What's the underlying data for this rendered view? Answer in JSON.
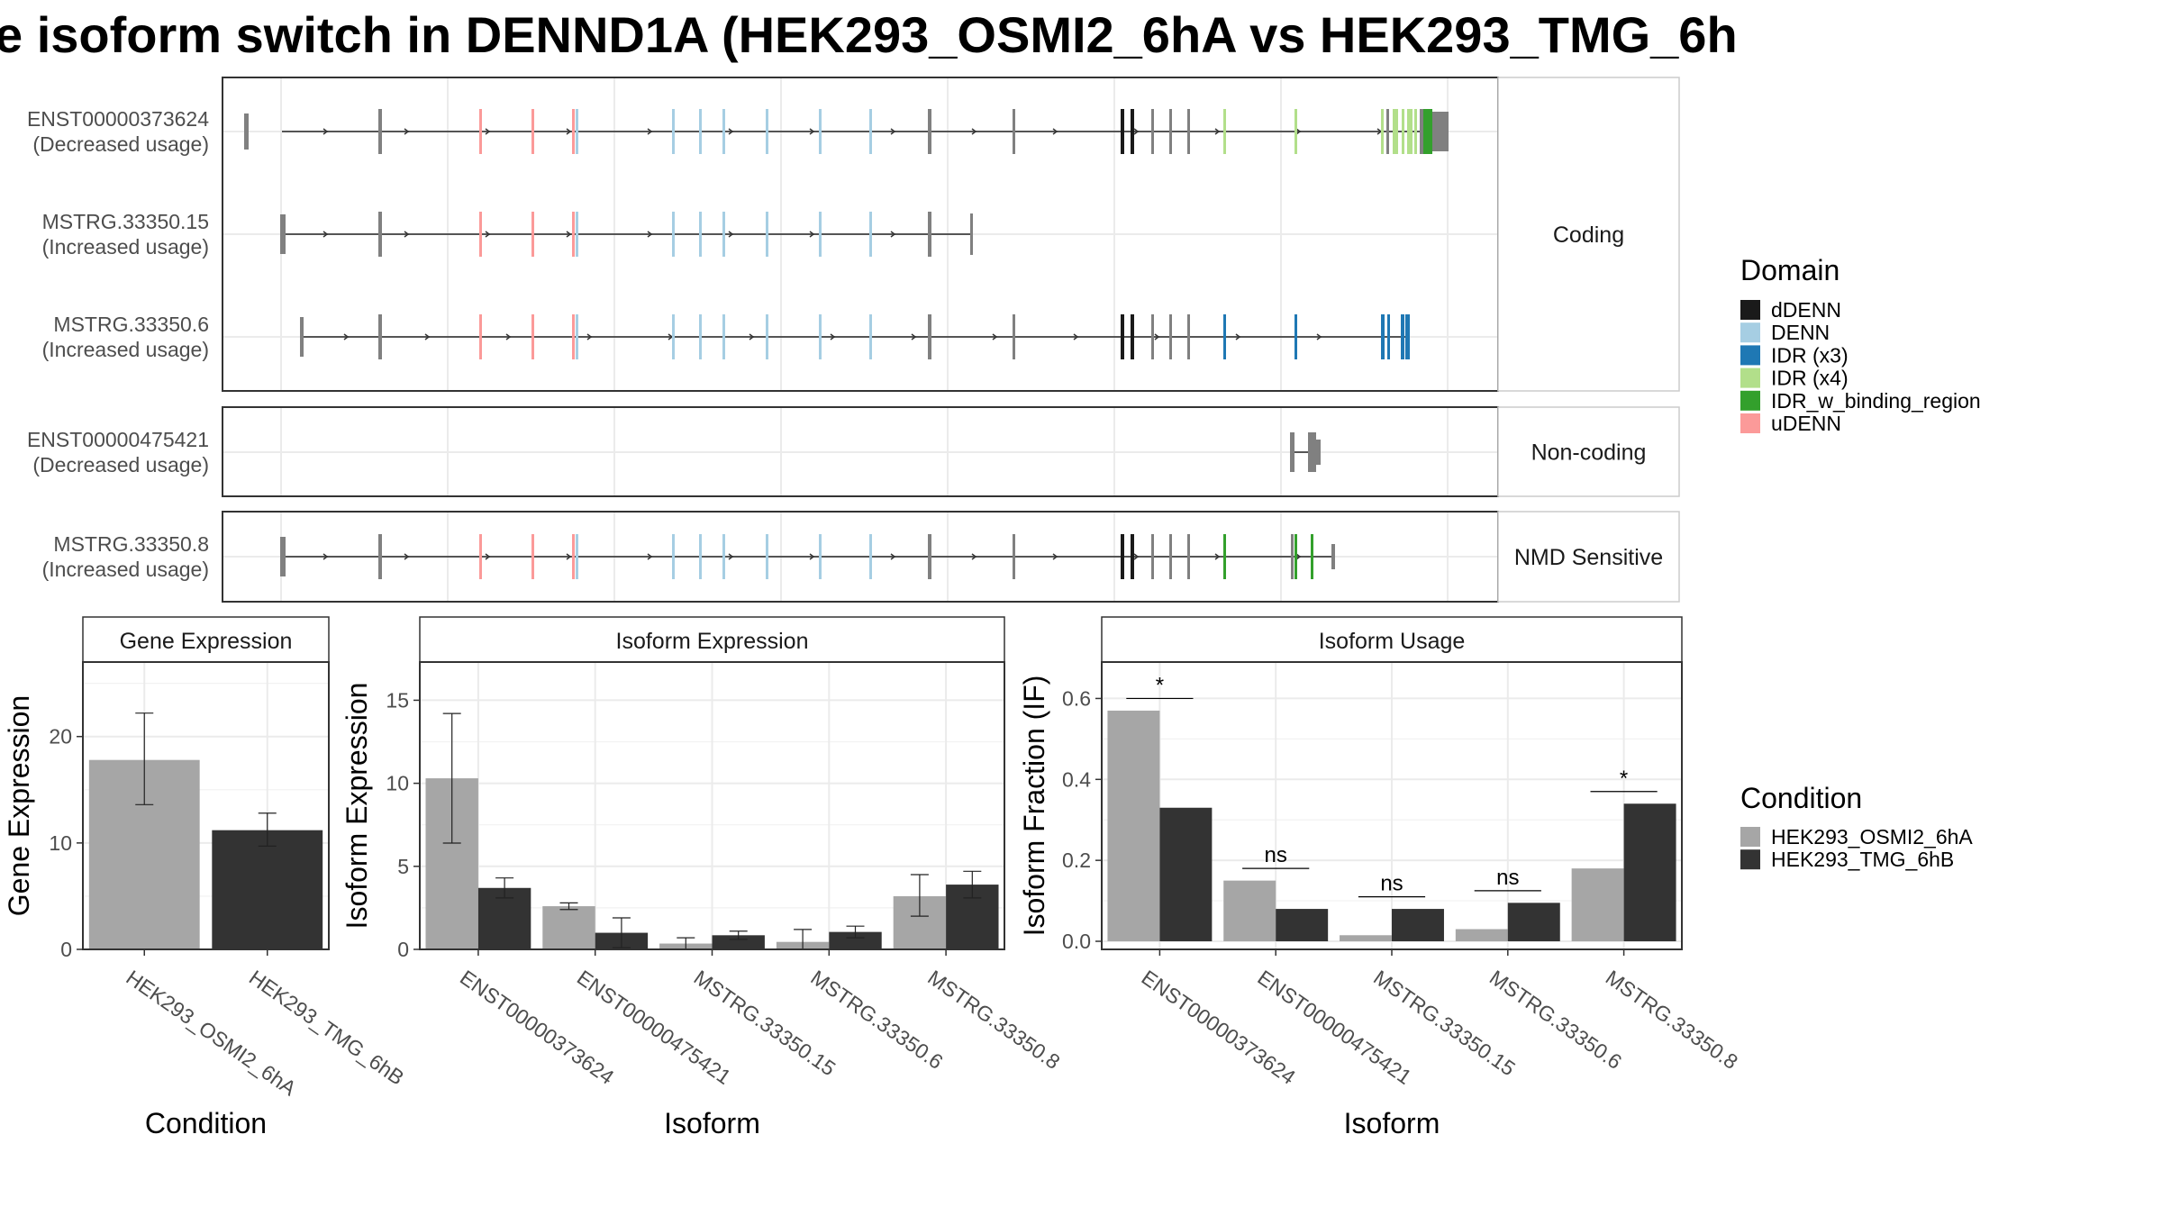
{
  "title": "e isoform switch in DENND1A (HEK293_OSMI2_6hA vs HEK293_TMG_6h",
  "colors": {
    "dDENN": "#1a1a1a",
    "DENN": "#a6cee3",
    "IDR_x3": "#1f78b4",
    "IDR_x4": "#b2df8a",
    "IDR_w_binding_region": "#33a02c",
    "uDENN": "#fb9a99",
    "exon_grey": "#808080",
    "cond_A": "#a6a6a6",
    "cond_B": "#333333"
  },
  "structure": {
    "categories": [
      "Coding",
      "Non-coding",
      "NMD Sensitive"
    ],
    "transcripts": [
      {
        "label": "ENST00000373624",
        "usage": "(Decreased usage)",
        "category": "Coding"
      },
      {
        "label": "MSTRG.33350.15",
        "usage": "(Increased usage)",
        "category": "Coding"
      },
      {
        "label": "MSTRG.33350.6",
        "usage": "(Increased usage)",
        "category": "Coding"
      },
      {
        "label": "ENST00000475421",
        "usage": "(Decreased usage)",
        "category": "Non-coding"
      },
      {
        "label": "MSTRG.33350.8",
        "usage": "(Increased usage)",
        "category": "NMD Sensitive"
      }
    ]
  },
  "legend": {
    "domain_title": "Domain",
    "domains": [
      {
        "name": "dDENN",
        "color": "#1a1a1a"
      },
      {
        "name": "DENN",
        "color": "#a6cee3"
      },
      {
        "name": "IDR (x3)",
        "color": "#1f78b4"
      },
      {
        "name": "IDR (x4)",
        "color": "#b2df8a"
      },
      {
        "name": "IDR_w_binding_region",
        "color": "#33a02c"
      },
      {
        "name": "uDENN",
        "color": "#fb9a99"
      }
    ],
    "condition_title": "Condition",
    "conditions": [
      {
        "name": "HEK293_OSMI2_6hA",
        "color": "#a6a6a6"
      },
      {
        "name": "HEK293_TMG_6hB",
        "color": "#333333"
      }
    ]
  },
  "chart_data": [
    {
      "type": "bar",
      "title": "Gene Expression",
      "xlabel": "Condition",
      "ylabel": "Gene Expression",
      "ylim": [
        0,
        27
      ],
      "yticks": [
        0,
        10,
        20
      ],
      "categories": [
        "HEK293_OSMI2_6hA",
        "HEK293_TMG_6hB"
      ],
      "values": [
        17.8,
        11.2
      ],
      "errors": [
        [
          13.6,
          22.2
        ],
        [
          9.7,
          12.8
        ]
      ]
    },
    {
      "type": "bar",
      "title": "Isoform Expression",
      "xlabel": "Isoform",
      "ylabel": "Isoform Expression",
      "ylim": [
        0,
        17.3
      ],
      "yticks": [
        0,
        5,
        10,
        15
      ],
      "categories": [
        "ENST00000373624",
        "ENST00000475421",
        "MSTRG.33350.15",
        "MSTRG.33350.6",
        "MSTRG.33350.8"
      ],
      "series": [
        {
          "name": "HEK293_OSMI2_6hA",
          "values": [
            10.3,
            2.6,
            0.35,
            0.45,
            3.2
          ],
          "errors": [
            [
              6.4,
              14.2
            ],
            [
              2.4,
              2.8
            ],
            [
              0.0,
              0.7
            ],
            [
              0.0,
              1.2
            ],
            [
              2.0,
              4.5
            ]
          ]
        },
        {
          "name": "HEK293_TMG_6hB",
          "values": [
            3.7,
            1.0,
            0.85,
            1.05,
            3.9
          ],
          "errors": [
            [
              3.1,
              4.3
            ],
            [
              0.1,
              1.9
            ],
            [
              0.6,
              1.1
            ],
            [
              0.7,
              1.4
            ],
            [
              3.1,
              4.7
            ]
          ]
        }
      ]
    },
    {
      "type": "bar",
      "title": "Isoform Usage",
      "xlabel": "Isoform",
      "ylabel": "Isoform Fraction (IF)",
      "ylim": [
        -0.02,
        0.69
      ],
      "yticks": [
        "0.0",
        "0.2",
        "0.4",
        "0.6"
      ],
      "categories": [
        "ENST00000373624",
        "ENST00000475421",
        "MSTRG.33350.15",
        "MSTRG.33350.6",
        "MSTRG.33350.8"
      ],
      "series": [
        {
          "name": "HEK293_OSMI2_6hA",
          "values": [
            0.57,
            0.15,
            0.015,
            0.03,
            0.18
          ]
        },
        {
          "name": "HEK293_TMG_6hB",
          "values": [
            0.33,
            0.08,
            0.08,
            0.095,
            0.34
          ]
        }
      ],
      "significance": [
        "*",
        "ns",
        "ns",
        "ns",
        "*"
      ],
      "sig_levels": [
        0.6,
        0.18,
        0.11,
        0.125,
        0.37
      ]
    }
  ]
}
